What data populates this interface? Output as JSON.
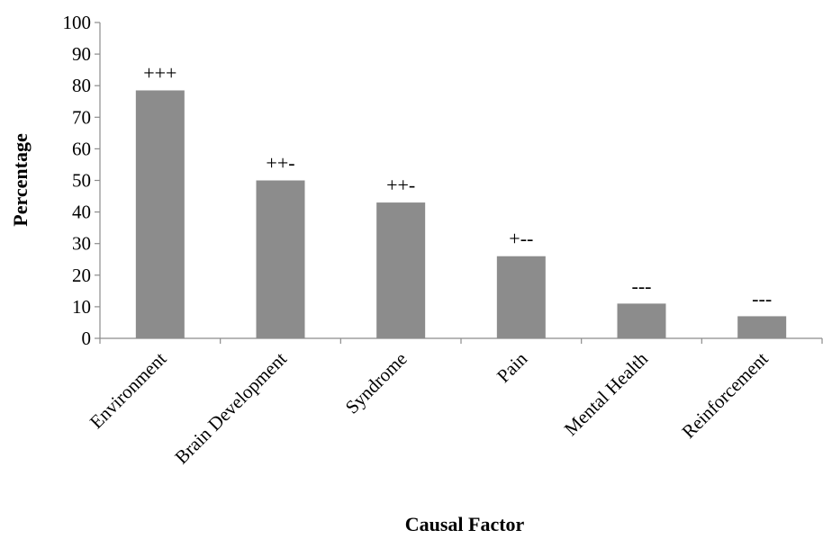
{
  "chart_data": {
    "type": "bar",
    "title": "",
    "xlabel": "Causal Factor",
    "ylabel": "Percentage",
    "ylim": [
      0,
      100
    ],
    "yticks": [
      0,
      10,
      20,
      30,
      40,
      50,
      60,
      70,
      80,
      90,
      100
    ],
    "categories": [
      "Environment",
      "Brain Development",
      "Syndrome",
      "Pain",
      "Mental Health",
      "Reinforcement"
    ],
    "values": [
      78.5,
      50,
      43,
      26,
      11,
      7
    ],
    "annotations": [
      "+++",
      "++-",
      "++-",
      "+--",
      "---",
      "---"
    ],
    "grid": false,
    "legend": "none",
    "bar_color": "#8c8c8c",
    "axis_color": "#8c8c8c"
  }
}
